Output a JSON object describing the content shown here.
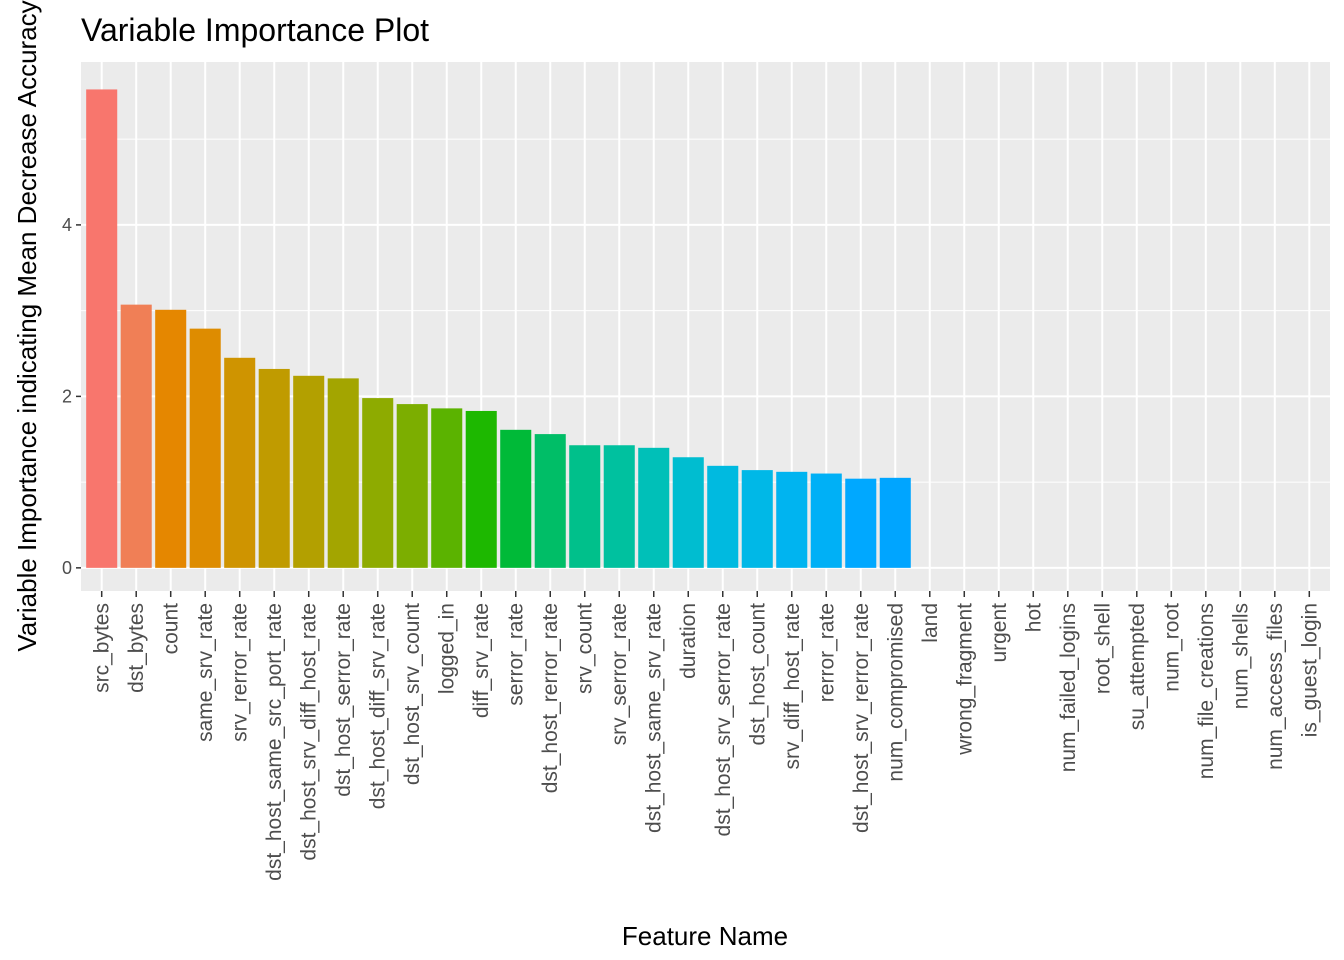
{
  "chart_data": {
    "type": "bar",
    "title": "Variable Importance Plot",
    "xlabel": "Feature Name",
    "ylabel": "Variable Importance indicating Mean Decrease Accuracy",
    "yticks": [
      "0",
      "2",
      "4"
    ],
    "ylim": [
      -0.27,
      5.9
    ],
    "grid": true,
    "legend": "none",
    "categories": [
      "src_bytes",
      "dst_bytes",
      "count",
      "same_srv_rate",
      "srv_rerror_rate",
      "dst_host_same_src_port_rate",
      "dst_host_srv_diff_host_rate",
      "dst_host_serror_rate",
      "dst_host_diff_srv_rate",
      "dst_host_srv_count",
      "logged_in",
      "diff_srv_rate",
      "serror_rate",
      "dst_host_rerror_rate",
      "srv_count",
      "srv_serror_rate",
      "dst_host_same_srv_rate",
      "duration",
      "dst_host_srv_serror_rate",
      "dst_host_count",
      "srv_diff_host_rate",
      "rerror_rate",
      "dst_host_srv_rerror_rate",
      "num_compromised",
      "land",
      "wrong_fragment",
      "urgent",
      "hot",
      "num_failed_logins",
      "root_shell",
      "su_attempted",
      "num_root",
      "num_file_creations",
      "num_shells",
      "num_access_files",
      "is_guest_login"
    ],
    "values": [
      5.58,
      3.07,
      3.01,
      2.79,
      2.45,
      2.32,
      2.24,
      2.21,
      1.98,
      1.91,
      1.86,
      1.83,
      1.61,
      1.56,
      1.43,
      1.43,
      1.4,
      1.29,
      1.19,
      1.14,
      1.12,
      1.1,
      1.04,
      1.05,
      0,
      0,
      0,
      0,
      0,
      0,
      0,
      0,
      0,
      0,
      0,
      0
    ],
    "colors": [
      "#F8766D",
      "#F07F56",
      "#E58700",
      "#DE8C00",
      "#CF9400",
      "#C09B00",
      "#B3A000",
      "#A3A500",
      "#8EAB00",
      "#7CAE00",
      "#5BB300",
      "#1DB800",
      "#00BA38",
      "#00BE67",
      "#00C08B",
      "#00C19F",
      "#00C0B8",
      "#00BDD0",
      "#00BAE0",
      "#00B8E7",
      "#00B4F0",
      "#00B0F6",
      "#00A8FF",
      "#00A5FF"
    ]
  }
}
